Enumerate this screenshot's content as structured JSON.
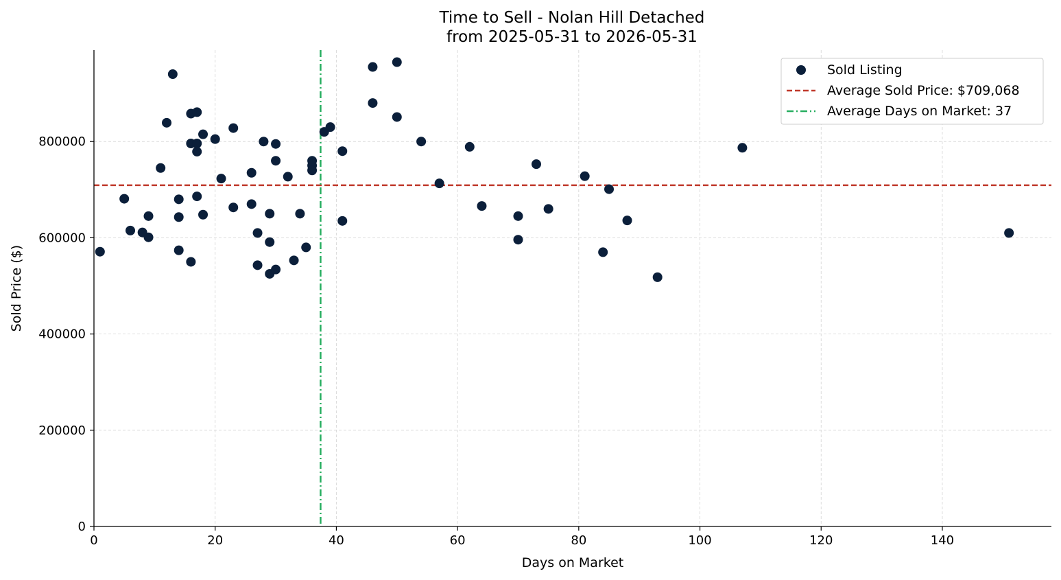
{
  "chart_data": {
    "type": "scatter",
    "title": "Time to Sell - Nolan Hill Detached",
    "subtitle": "from 2025-05-31 to 2026-05-31",
    "xlabel": "Days on Market",
    "ylabel": "Sold Price ($)",
    "xlim": [
      0,
      158
    ],
    "ylim": [
      0,
      990000
    ],
    "x_ticks": [
      0,
      20,
      40,
      60,
      80,
      100,
      120,
      140
    ],
    "y_ticks": [
      0,
      200000,
      400000,
      600000,
      800000
    ],
    "x_tick_labels": [
      "0",
      "20",
      "40",
      "60",
      "80",
      "100",
      "120",
      "140"
    ],
    "y_tick_labels": [
      "0",
      "200000",
      "400000",
      "600000",
      "800000"
    ],
    "grid": true,
    "legend_position": "top-right",
    "colors": {
      "points": "#0b1f3a",
      "avg_price_line": "#c0392b",
      "avg_days_line": "#27ae60",
      "grid": "#d3d3d3"
    },
    "series": [
      {
        "name": "Sold Listing",
        "points": [
          [
            1,
            571000
          ],
          [
            5,
            681000
          ],
          [
            6,
            615000
          ],
          [
            8,
            611000
          ],
          [
            9,
            645000
          ],
          [
            9,
            601000
          ],
          [
            11,
            745000
          ],
          [
            12,
            839000
          ],
          [
            13,
            940000
          ],
          [
            14,
            680000
          ],
          [
            14,
            643000
          ],
          [
            14,
            574000
          ],
          [
            16,
            858000
          ],
          [
            16,
            796000
          ],
          [
            16,
            550000
          ],
          [
            17,
            861000
          ],
          [
            17,
            796000
          ],
          [
            17,
            779000
          ],
          [
            17,
            686000
          ],
          [
            18,
            815000
          ],
          [
            18,
            648000
          ],
          [
            20,
            805000
          ],
          [
            21,
            723000
          ],
          [
            23,
            828000
          ],
          [
            23,
            663000
          ],
          [
            26,
            735000
          ],
          [
            26,
            670000
          ],
          [
            27,
            610000
          ],
          [
            27,
            543000
          ],
          [
            28,
            800000
          ],
          [
            29,
            650000
          ],
          [
            29,
            591000
          ],
          [
            29,
            525000
          ],
          [
            30,
            795000
          ],
          [
            30,
            760000
          ],
          [
            30,
            534000
          ],
          [
            32,
            727000
          ],
          [
            33,
            553000
          ],
          [
            34,
            650000
          ],
          [
            35,
            580000
          ],
          [
            36,
            760000
          ],
          [
            36,
            750000
          ],
          [
            36,
            740000
          ],
          [
            38,
            820000
          ],
          [
            39,
            830000
          ],
          [
            41,
            780000
          ],
          [
            41,
            635000
          ],
          [
            46,
            955000
          ],
          [
            46,
            880000
          ],
          [
            50,
            965000
          ],
          [
            50,
            851000
          ],
          [
            54,
            800000
          ],
          [
            57,
            713000
          ],
          [
            62,
            789000
          ],
          [
            64,
            666000
          ],
          [
            70,
            645000
          ],
          [
            70,
            596000
          ],
          [
            73,
            753000
          ],
          [
            75,
            660000
          ],
          [
            81,
            728000
          ],
          [
            84,
            570000
          ],
          [
            85,
            701000
          ],
          [
            88,
            636000
          ],
          [
            93,
            518000
          ],
          [
            107,
            787000
          ],
          [
            151,
            610000
          ]
        ]
      }
    ],
    "reference_lines": {
      "avg_price": {
        "label": "Average Sold Price: $709,068",
        "value": 709068
      },
      "avg_days": {
        "label": "Average Days on Market: 37",
        "value": 37.4
      }
    }
  }
}
